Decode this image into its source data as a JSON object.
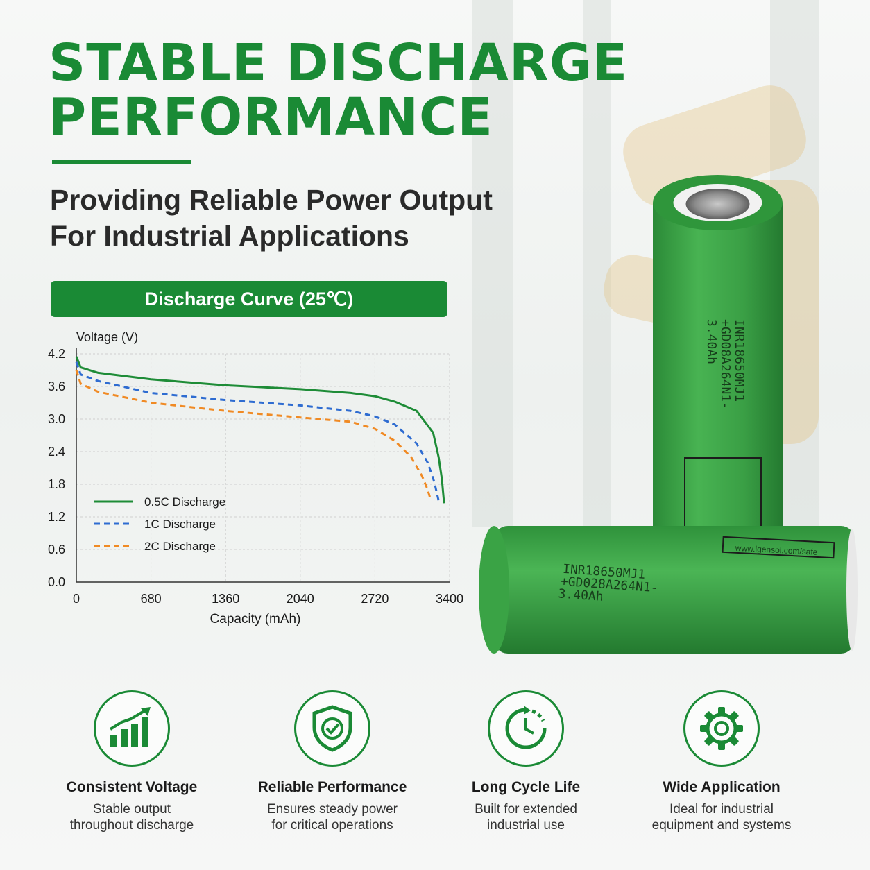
{
  "headline": {
    "line1": "STABLE DISCHARGE",
    "line2": "PERFORMANCE"
  },
  "subheadline": {
    "line1": "Providing Reliable Power Output",
    "line2": "For Industrial Applications"
  },
  "chart_banner": "Discharge Curve (25℃)",
  "chart_data": {
    "type": "line",
    "title": "Discharge Curve (25℃)",
    "xlabel": "Capacity (mAh)",
    "ylabel": "Voltage (V)",
    "xlim": [
      0,
      3400
    ],
    "ylim": [
      0,
      4.2
    ],
    "x_ticks": [
      "0",
      "680",
      "1360",
      "2040",
      "2720",
      "3400"
    ],
    "y_ticks": [
      "0.0",
      "0.6",
      "1.2",
      "1.8",
      "2.4",
      "3.0",
      "3.6",
      "4.2"
    ],
    "grid": true,
    "legend_position": "bottom-left",
    "series": [
      {
        "name": "0.5C Discharge",
        "color": "#1e8c37",
        "style": "solid",
        "x": [
          0,
          40,
          200,
          680,
          1360,
          2040,
          2500,
          2720,
          2900,
          3100,
          3250,
          3300,
          3330,
          3350
        ],
        "y": [
          4.15,
          3.95,
          3.85,
          3.73,
          3.62,
          3.55,
          3.48,
          3.42,
          3.32,
          3.15,
          2.75,
          2.3,
          1.9,
          1.45
        ]
      },
      {
        "name": "1C Discharge",
        "color": "#2e6cd1",
        "style": "dashed",
        "x": [
          0,
          40,
          200,
          680,
          1360,
          2040,
          2500,
          2720,
          2900,
          3100,
          3200,
          3260,
          3300
        ],
        "y": [
          4.05,
          3.82,
          3.7,
          3.48,
          3.35,
          3.25,
          3.15,
          3.05,
          2.9,
          2.55,
          2.2,
          1.85,
          1.5
        ]
      },
      {
        "name": "2C Discharge",
        "color": "#f08a24",
        "style": "dashed",
        "x": [
          0,
          40,
          200,
          680,
          1360,
          2040,
          2500,
          2720,
          2900,
          3050,
          3150,
          3200,
          3230
        ],
        "y": [
          3.9,
          3.65,
          3.5,
          3.3,
          3.15,
          3.03,
          2.95,
          2.82,
          2.6,
          2.3,
          1.95,
          1.7,
          1.5
        ]
      }
    ]
  },
  "battery_labels": {
    "upright": [
      "INR18650MJ1",
      "+GD08A264N1-",
      "3.40Ah"
    ],
    "lying": [
      "INR18650MJ1",
      "+GD028A264N1-",
      "3.40Ah"
    ],
    "website": "www.lgensol.com/safe"
  },
  "features": [
    {
      "icon": "bar-chart-growth-icon",
      "title": "Consistent Voltage",
      "desc1": "Stable output",
      "desc2": "throughout discharge"
    },
    {
      "icon": "shield-check-icon",
      "title": "Reliable Performance",
      "desc1": "Ensures steady power",
      "desc2": "for critical operations"
    },
    {
      "icon": "cycle-clock-icon",
      "title": "Long Cycle Life",
      "desc1": "Built for extended",
      "desc2": "industrial use"
    },
    {
      "icon": "gear-icon",
      "title": "Wide Application",
      "desc1": "Ideal for industrial",
      "desc2": "equipment and systems"
    }
  ],
  "colors": {
    "brand_green": "#1a8a35",
    "battery_green": "#3da447"
  }
}
